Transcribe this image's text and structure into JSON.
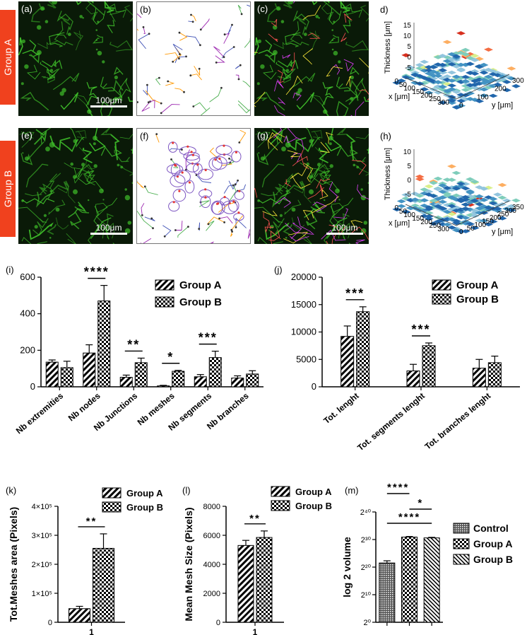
{
  "groups": {
    "a": "Group A",
    "b": "Group B"
  },
  "panels": {
    "a": "(a)",
    "b": "(b)",
    "c": "(c)",
    "d": "d)",
    "e": "(e)",
    "f": "(f)",
    "g": "(g)",
    "h": "(h)"
  },
  "scale_bar": "100μm",
  "surface_plots": {
    "d": {
      "zlabel": "Thickness [μm]",
      "xlabel": "x [μm]",
      "ylabel": "y [μm]",
      "z_ticks": [
        "15",
        "10",
        "5",
        "0",
        "-5"
      ],
      "x_ticks": [
        "0",
        "50",
        "100",
        "150",
        "200",
        "250",
        "300"
      ],
      "y_ticks": [
        "0",
        "100",
        "200",
        "300"
      ]
    },
    "h": {
      "zlabel": "Thickness [μm]",
      "xlabel": "x [μm]",
      "ylabel": "y [μm]",
      "z_ticks": [
        "10",
        "5",
        "0",
        "-5"
      ],
      "x_ticks": [
        "0",
        "50",
        "100",
        "150",
        "200",
        "250",
        "300"
      ],
      "y_ticks": [
        "0",
        "50",
        "100",
        "150",
        "200",
        "250",
        "300",
        "350"
      ]
    }
  },
  "colors": {
    "group_tab": "#f0411e",
    "micro_bg": "#0a1a08",
    "fiber": "#3fbf2a",
    "red_peak": "#d7301f",
    "blue_low": "#2166ac"
  },
  "chart_data": [
    {
      "id": "i",
      "panel_label": "(i)",
      "type": "bar",
      "categories": [
        "Nb extremities",
        "Nb nodes",
        "Nb Junctions",
        "Nb meshes",
        "Nb segments",
        "Nb branches"
      ],
      "series": [
        {
          "name": "Group A",
          "values": [
            135,
            185,
            52,
            5,
            55,
            48
          ],
          "errors": [
            12,
            45,
            12,
            3,
            12,
            12
          ]
        },
        {
          "name": "Group B",
          "values": [
            105,
            470,
            132,
            85,
            160,
            70
          ],
          "errors": [
            35,
            85,
            25,
            5,
            35,
            18
          ]
        }
      ],
      "ylim": [
        0,
        600
      ],
      "yticks": [
        "0",
        "200",
        "400",
        "600"
      ],
      "significance": [
        {
          "category": 1,
          "label": "****"
        },
        {
          "category": 2,
          "label": "**"
        },
        {
          "category": 3,
          "label": "*"
        },
        {
          "category": 4,
          "label": "***"
        }
      ],
      "legend": "top-right"
    },
    {
      "id": "j",
      "panel_label": "(j)",
      "type": "bar",
      "categories": [
        "Tot. lenght",
        "Tot. segments lenght",
        "Tot. branches lenght"
      ],
      "series": [
        {
          "name": "Group A",
          "values": [
            9200,
            2900,
            3400
          ],
          "errors": [
            1900,
            1200,
            1600
          ]
        },
        {
          "name": "Group B",
          "values": [
            13700,
            7500,
            4400
          ],
          "errors": [
            900,
            500,
            1200
          ]
        }
      ],
      "ylim": [
        0,
        20000
      ],
      "yticks": [
        "0",
        "5000",
        "10000",
        "15000",
        "20000"
      ],
      "significance": [
        {
          "category": 0,
          "label": "***"
        },
        {
          "category": 1,
          "label": "***"
        }
      ],
      "legend": "top-right"
    },
    {
      "id": "k",
      "panel_label": "(k)",
      "type": "bar",
      "categories": [
        "1"
      ],
      "series": [
        {
          "name": "Group A",
          "values": [
            47000
          ],
          "errors": [
            8000
          ]
        },
        {
          "name": "Group B",
          "values": [
            255000
          ],
          "errors": [
            50000
          ]
        }
      ],
      "ylim": [
        0,
        400000
      ],
      "yticks": [
        "0",
        "1×10⁵",
        "2×10⁵",
        "3×10⁵",
        "4×10⁵"
      ],
      "ylabel": "Tot.Meshes area (Pixels)",
      "significance": [
        {
          "category": 0,
          "label": "**"
        }
      ],
      "legend": "top-right"
    },
    {
      "id": "l",
      "panel_label": "(l)",
      "type": "bar",
      "categories": [
        "1"
      ],
      "series": [
        {
          "name": "Group A",
          "values": [
            5300
          ],
          "errors": [
            350
          ]
        },
        {
          "name": "Group B",
          "values": [
            5850
          ],
          "errors": [
            450
          ]
        }
      ],
      "ylim": [
        0,
        8000
      ],
      "yticks": [
        "0",
        "2000",
        "4000",
        "6000",
        "8000"
      ],
      "ylabel": "Mean Mesh Size (Pixels)",
      "significance": [
        {
          "category": 0,
          "label": "**"
        }
      ],
      "legend": "top-right"
    },
    {
      "id": "m",
      "panel_label": "(m)",
      "type": "bar",
      "categories": [
        "Control",
        "Group A",
        "Group B"
      ],
      "series": [
        {
          "name": "log 2 volume",
          "values": [
            21.5,
            30.9,
            30.6
          ],
          "errors": [
            0.8,
            0.2,
            0.2
          ]
        }
      ],
      "legend_items": [
        "Control",
        "Group A",
        "Group B"
      ],
      "ylim": [
        0,
        40
      ],
      "yticks": [
        "2⁰",
        "2¹⁰",
        "2²⁰",
        "2³⁰",
        "2⁴⁰"
      ],
      "ylabel": "log 2 volume",
      "significance": [
        {
          "from": 0,
          "to": 1,
          "label": "****"
        },
        {
          "from": 1,
          "to": 2,
          "label": "*"
        },
        {
          "from": 0,
          "to": 2,
          "label": "****"
        }
      ],
      "legend": "right"
    }
  ]
}
